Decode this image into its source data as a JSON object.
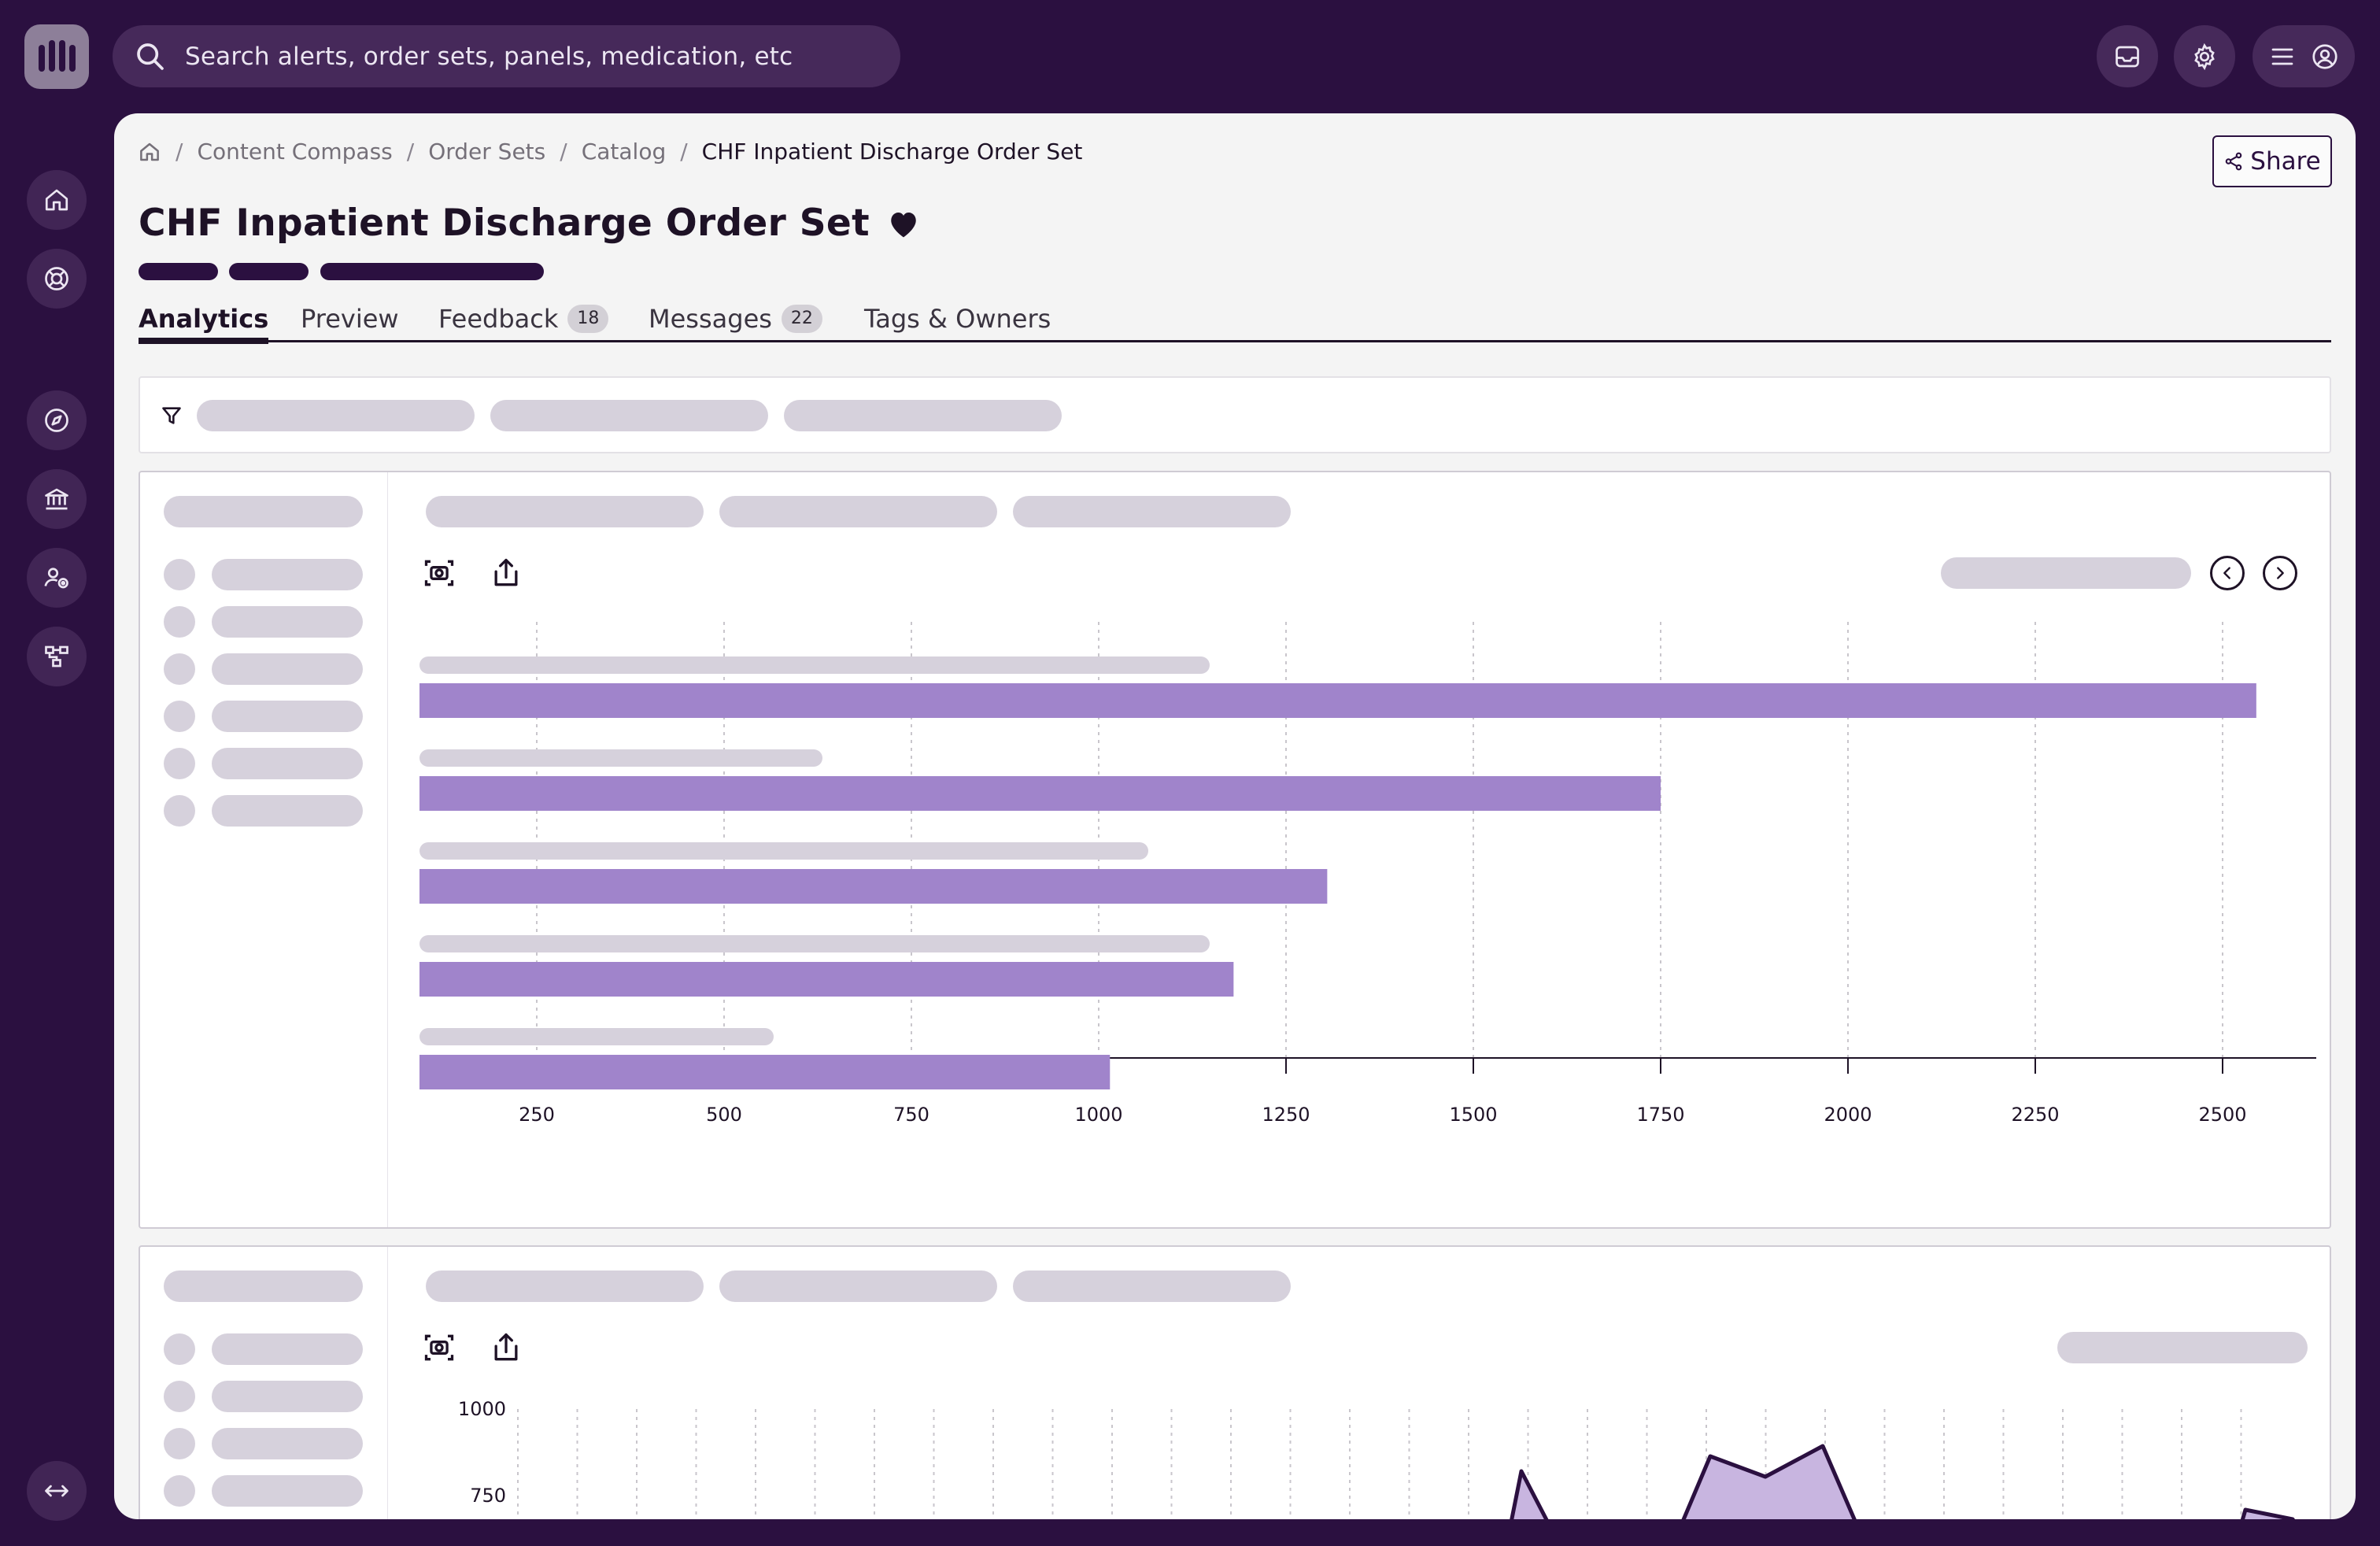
{
  "search": {
    "placeholder": "Search alerts, order sets, panels, medication, etc"
  },
  "breadcrumb": [
    "Content Compass",
    "Order Sets",
    "Catalog",
    "CHF Inpatient Discharge Order Set"
  ],
  "page": {
    "title": "CHF Inpatient Discharge Order Set",
    "share_label": "Share"
  },
  "tabs": [
    {
      "label": "Analytics",
      "count": ""
    },
    {
      "label": "Preview",
      "count": ""
    },
    {
      "label": "Feedback",
      "count": "18"
    },
    {
      "label": "Messages",
      "count": "22"
    },
    {
      "label": "Tags & Owners",
      "count": ""
    }
  ],
  "colors": {
    "accent": "#2b1040",
    "bar": "#a084cb",
    "area": "#c8b5e0",
    "panel": "#f4f4f4"
  },
  "icons": {
    "rail": [
      "home-icon",
      "lifebuoy-icon",
      "compass-icon",
      "bank-icon",
      "users-settings-icon",
      "hierarchy-icon",
      "expand-icon"
    ],
    "top": [
      "inbox-icon",
      "gear-icon",
      "menu-icon",
      "user-icon"
    ]
  },
  "chart_data": [
    {
      "type": "bar",
      "orientation": "horizontal",
      "categories": [
        "",
        "",
        "",
        "",
        ""
      ],
      "values": [
        2545,
        1750,
        1305,
        1180,
        1015
      ],
      "xlim": [
        125,
        2625
      ],
      "xticks": [
        250,
        500,
        750,
        1000,
        1250,
        1500,
        1750,
        2000,
        2250,
        2500
      ],
      "grid": true,
      "title": "",
      "xlabel": "",
      "ylabel": ""
    },
    {
      "type": "area",
      "yticks_visible": [
        1000,
        750
      ],
      "partial": true,
      "title": "",
      "xlabel": "",
      "ylabel": ""
    }
  ]
}
